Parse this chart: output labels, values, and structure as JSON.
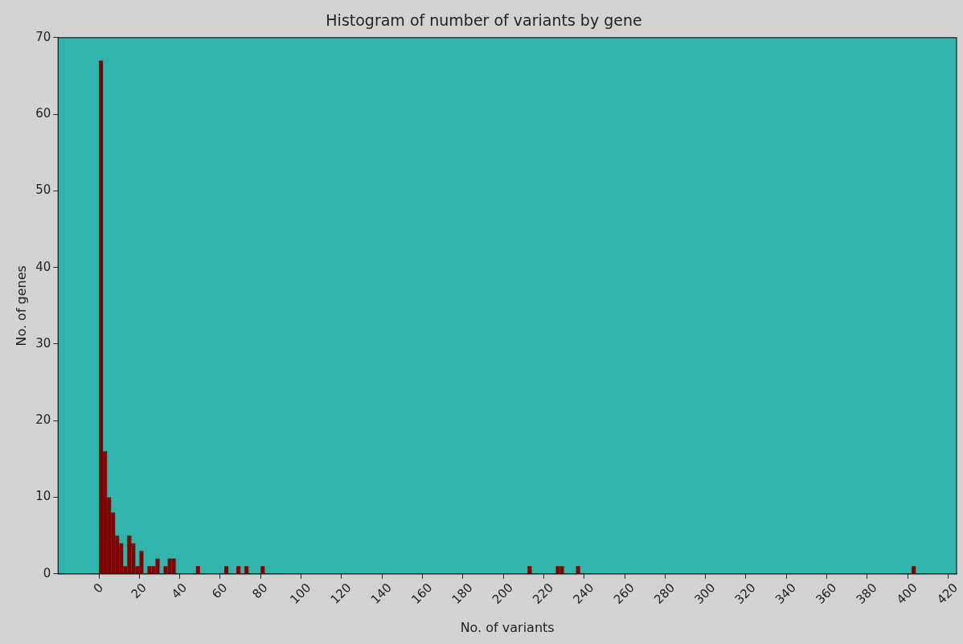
{
  "chart_data": {
    "type": "histogram",
    "title": "Histogram of number of variants by gene",
    "xlabel": "No. of variants",
    "ylabel": "No. of genes",
    "bins": [
      0,
      2,
      4,
      6,
      8,
      10,
      12,
      14,
      16,
      18,
      20,
      22,
      24,
      26,
      28,
      30,
      32,
      34,
      36,
      38,
      48,
      50,
      62,
      64,
      68,
      70,
      72,
      74,
      80,
      82,
      212,
      214,
      226,
      228,
      230,
      236,
      238,
      402,
      404
    ],
    "values": [
      67,
      16,
      10,
      8,
      5,
      4,
      1,
      5,
      4,
      1,
      3,
      0,
      1,
      1,
      2,
      0,
      1,
      2,
      2,
      0,
      1,
      0,
      1,
      0,
      1,
      0,
      1,
      0,
      1,
      0,
      1,
      0,
      1,
      1,
      0,
      1,
      0,
      1
    ],
    "color": "#800000",
    "xlim": [
      -20.2,
      424.2
    ],
    "xticks": [
      0,
      20,
      40,
      60,
      80,
      100,
      120,
      140,
      160,
      180,
      200,
      220,
      240,
      260,
      280,
      300,
      320,
      340,
      360,
      380,
      400,
      420
    ],
    "ylim": [
      0,
      70
    ],
    "yticks": [
      0,
      10,
      20,
      30,
      40,
      50,
      60,
      70
    ],
    "grid": false,
    "legend": false
  }
}
